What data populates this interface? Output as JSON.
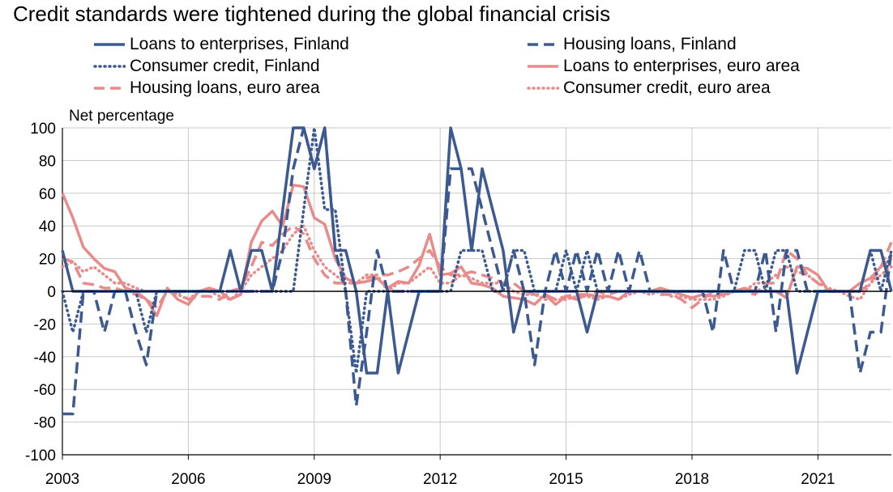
{
  "chart_data": {
    "type": "line",
    "title": "Credit standards were tightened during the global financial crisis",
    "ylabel": "Net percentage",
    "xlabel": "",
    "ylim": [
      -100,
      100
    ],
    "xlim": [
      2003.0,
      2022.75
    ],
    "yticks": [
      "100",
      "80",
      "60",
      "40",
      "20",
      "0",
      "-20",
      "-40",
      "-60",
      "-80",
      "-100"
    ],
    "xticks": [
      "2003",
      "2006",
      "2009",
      "2012",
      "2015",
      "2018",
      "2021"
    ],
    "grid": true,
    "legend_position": "top",
    "series": [
      {
        "name": "Loans to enterprises, Finland",
        "color": "#3c5a8f",
        "style": "solid",
        "x": [
          2003.0,
          2003.25,
          2003.5,
          2003.75,
          2004.0,
          2004.25,
          2004.5,
          2004.75,
          2005.0,
          2005.25,
          2005.5,
          2005.75,
          2006.0,
          2006.25,
          2006.5,
          2006.75,
          2007.0,
          2007.25,
          2007.5,
          2007.75,
          2008.0,
          2008.25,
          2008.5,
          2008.75,
          2009.0,
          2009.25,
          2009.5,
          2009.75,
          2010.0,
          2010.25,
          2010.5,
          2010.75,
          2011.0,
          2011.25,
          2011.5,
          2011.75,
          2012.0,
          2012.25,
          2012.5,
          2012.75,
          2013.0,
          2013.25,
          2013.5,
          2013.75,
          2014.0,
          2014.25,
          2014.5,
          2014.75,
          2015.0,
          2015.25,
          2015.5,
          2015.75,
          2016.0,
          2016.25,
          2016.5,
          2016.75,
          2017.0,
          2017.25,
          2017.5,
          2017.75,
          2018.0,
          2018.25,
          2018.5,
          2018.75,
          2019.0,
          2019.25,
          2019.5,
          2019.75,
          2020.0,
          2020.25,
          2020.5,
          2020.75,
          2021.0,
          2021.25,
          2021.5,
          2021.75,
          2022.0,
          2022.25,
          2022.5,
          2022.75
        ],
        "values": [
          25,
          0,
          0,
          0,
          0,
          0,
          0,
          0,
          0,
          0,
          0,
          0,
          0,
          0,
          0,
          0,
          25,
          0,
          25,
          25,
          0,
          50,
          100,
          100,
          75,
          100,
          25,
          25,
          0,
          -50,
          -50,
          0,
          -50,
          -25,
          0,
          0,
          0,
          100,
          75,
          25,
          75,
          50,
          25,
          -25,
          0,
          0,
          0,
          0,
          0,
          0,
          -25,
          0,
          0,
          0,
          0,
          0,
          0,
          0,
          0,
          0,
          0,
          0,
          0,
          0,
          0,
          0,
          0,
          0,
          0,
          0,
          -50,
          -25,
          0,
          0,
          0,
          0,
          0,
          25,
          25,
          0
        ]
      },
      {
        "name": "Housing loans, Finland",
        "color": "#3c5a8f",
        "style": "dashed",
        "x": [
          2003.0,
          2003.25,
          2003.5,
          2003.75,
          2004.0,
          2004.25,
          2004.5,
          2004.75,
          2005.0,
          2005.25,
          2005.5,
          2005.75,
          2006.0,
          2006.25,
          2006.5,
          2006.75,
          2007.0,
          2007.25,
          2007.5,
          2007.75,
          2008.0,
          2008.25,
          2008.5,
          2008.75,
          2009.0,
          2009.25,
          2009.5,
          2009.75,
          2010.0,
          2010.25,
          2010.5,
          2010.75,
          2011.0,
          2011.25,
          2011.5,
          2011.75,
          2012.0,
          2012.25,
          2012.5,
          2012.75,
          2013.0,
          2013.25,
          2013.5,
          2013.75,
          2014.0,
          2014.25,
          2014.5,
          2014.75,
          2015.0,
          2015.25,
          2015.5,
          2015.75,
          2016.0,
          2016.25,
          2016.5,
          2016.75,
          2017.0,
          2017.25,
          2017.5,
          2017.75,
          2018.0,
          2018.25,
          2018.5,
          2018.75,
          2019.0,
          2019.25,
          2019.5,
          2019.75,
          2020.0,
          2020.25,
          2020.5,
          2020.75,
          2021.0,
          2021.25,
          2021.5,
          2021.75,
          2022.0,
          2022.25,
          2022.5,
          2022.75
        ],
        "values": [
          -75,
          -75,
          0,
          0,
          -25,
          0,
          0,
          -25,
          -45,
          0,
          0,
          0,
          0,
          0,
          0,
          0,
          0,
          0,
          0,
          0,
          0,
          25,
          75,
          100,
          75,
          100,
          25,
          0,
          -70,
          -25,
          25,
          0,
          0,
          0,
          0,
          0,
          0,
          75,
          75,
          75,
          50,
          25,
          0,
          25,
          0,
          -45,
          0,
          25,
          0,
          25,
          0,
          25,
          0,
          25,
          0,
          25,
          0,
          0,
          0,
          0,
          0,
          0,
          -25,
          25,
          0,
          0,
          0,
          25,
          -25,
          25,
          25,
          0,
          0,
          0,
          0,
          0,
          -50,
          -25,
          -25,
          25
        ]
      },
      {
        "name": "Consumer credit, Finland",
        "color": "#3c5a8f",
        "style": "dotted",
        "x": [
          2003.0,
          2003.25,
          2003.5,
          2003.75,
          2004.0,
          2004.25,
          2004.5,
          2004.75,
          2005.0,
          2005.25,
          2005.5,
          2005.75,
          2006.0,
          2006.25,
          2006.5,
          2006.75,
          2007.0,
          2007.25,
          2007.5,
          2007.75,
          2008.0,
          2008.25,
          2008.5,
          2008.75,
          2009.0,
          2009.25,
          2009.5,
          2009.75,
          2010.0,
          2010.25,
          2010.5,
          2010.75,
          2011.0,
          2011.25,
          2011.5,
          2011.75,
          2012.0,
          2012.25,
          2012.5,
          2012.75,
          2013.0,
          2013.25,
          2013.5,
          2013.75,
          2014.0,
          2014.25,
          2014.5,
          2014.75,
          2015.0,
          2015.25,
          2015.5,
          2015.75,
          2016.0,
          2016.25,
          2016.5,
          2016.75,
          2017.0,
          2017.25,
          2017.5,
          2017.75,
          2018.0,
          2018.25,
          2018.5,
          2018.75,
          2019.0,
          2019.25,
          2019.5,
          2019.75,
          2020.0,
          2020.25,
          2020.5,
          2020.75,
          2021.0,
          2021.25,
          2021.5,
          2021.75,
          2022.0,
          2022.25,
          2022.5,
          2022.75
        ],
        "values": [
          0,
          -25,
          0,
          0,
          0,
          0,
          0,
          0,
          -25,
          0,
          0,
          0,
          0,
          0,
          0,
          0,
          0,
          0,
          0,
          0,
          0,
          0,
          0,
          50,
          100,
          50,
          50,
          0,
          -50,
          0,
          0,
          0,
          0,
          0,
          0,
          0,
          0,
          0,
          25,
          25,
          25,
          0,
          0,
          25,
          25,
          0,
          0,
          0,
          25,
          0,
          25,
          0,
          0,
          0,
          0,
          0,
          0,
          0,
          0,
          0,
          0,
          0,
          0,
          0,
          0,
          25,
          25,
          0,
          25,
          25,
          0,
          0,
          0,
          0,
          0,
          0,
          0,
          25,
          0,
          25
        ]
      },
      {
        "name": "Loans to enterprises, euro area",
        "color": "#e88b8b",
        "style": "solid",
        "x": [
          2003.0,
          2003.25,
          2003.5,
          2003.75,
          2004.0,
          2004.25,
          2004.5,
          2004.75,
          2005.0,
          2005.25,
          2005.5,
          2005.75,
          2006.0,
          2006.25,
          2006.5,
          2006.75,
          2007.0,
          2007.25,
          2007.5,
          2007.75,
          2008.0,
          2008.25,
          2008.5,
          2008.75,
          2009.0,
          2009.25,
          2009.5,
          2009.75,
          2010.0,
          2010.25,
          2010.5,
          2010.75,
          2011.0,
          2011.25,
          2011.5,
          2011.75,
          2012.0,
          2012.25,
          2012.5,
          2012.75,
          2013.0,
          2013.25,
          2013.5,
          2013.75,
          2014.0,
          2014.25,
          2014.5,
          2014.75,
          2015.0,
          2015.25,
          2015.5,
          2015.75,
          2016.0,
          2016.25,
          2016.5,
          2016.75,
          2017.0,
          2017.25,
          2017.5,
          2017.75,
          2018.0,
          2018.25,
          2018.5,
          2018.75,
          2019.0,
          2019.25,
          2019.5,
          2019.75,
          2020.0,
          2020.25,
          2020.5,
          2020.75,
          2021.0,
          2021.25,
          2021.5,
          2021.75,
          2022.0,
          2022.25,
          2022.5,
          2022.75
        ],
        "values": [
          60,
          45,
          27,
          20,
          14,
          12,
          2,
          0,
          -5,
          -15,
          2,
          -5,
          -8,
          0,
          2,
          0,
          -5,
          -2,
          30,
          43,
          49,
          40,
          65,
          64,
          45,
          41,
          20,
          8,
          5,
          6,
          8,
          2,
          6,
          5,
          16,
          35,
          10,
          11,
          15,
          5,
          4,
          2,
          -3,
          -4,
          -5,
          -8,
          -2,
          -8,
          -3,
          -5,
          -2,
          -3,
          -3,
          -5,
          0,
          0,
          0,
          2,
          0,
          -2,
          -4,
          -2,
          -3,
          -2,
          0,
          2,
          0,
          0,
          0,
          -4,
          15,
          14,
          10,
          0,
          0,
          0,
          5,
          8,
          15,
          20
        ]
      },
      {
        "name": "Housing loans, euro area",
        "color": "#e88b8b",
        "style": "dashed",
        "x": [
          2003.0,
          2003.25,
          2003.5,
          2003.75,
          2004.0,
          2004.25,
          2004.5,
          2004.75,
          2005.0,
          2005.25,
          2005.5,
          2005.75,
          2006.0,
          2006.25,
          2006.5,
          2006.75,
          2007.0,
          2007.25,
          2007.5,
          2007.75,
          2008.0,
          2008.25,
          2008.5,
          2008.75,
          2009.0,
          2009.25,
          2009.5,
          2009.75,
          2010.0,
          2010.25,
          2010.5,
          2010.75,
          2011.0,
          2011.25,
          2011.5,
          2011.75,
          2012.0,
          2012.25,
          2012.5,
          2012.75,
          2013.0,
          2013.25,
          2013.5,
          2013.75,
          2014.0,
          2014.25,
          2014.5,
          2014.75,
          2015.0,
          2015.25,
          2015.5,
          2015.75,
          2016.0,
          2016.25,
          2016.5,
          2016.75,
          2017.0,
          2017.25,
          2017.5,
          2017.75,
          2018.0,
          2018.25,
          2018.5,
          2018.75,
          2019.0,
          2019.25,
          2019.5,
          2019.75,
          2020.0,
          2020.25,
          2020.5,
          2020.75,
          2021.0,
          2021.25,
          2021.5,
          2021.75,
          2022.0,
          2022.25,
          2022.5,
          2022.75
        ],
        "values": [
          20,
          18,
          5,
          4,
          2,
          2,
          0,
          -2,
          -5,
          -10,
          0,
          0,
          -5,
          -3,
          -3,
          -5,
          0,
          2,
          15,
          30,
          28,
          35,
          40,
          35,
          20,
          10,
          5,
          5,
          5,
          8,
          10,
          10,
          12,
          15,
          20,
          25,
          15,
          10,
          10,
          12,
          10,
          8,
          5,
          5,
          0,
          -2,
          -2,
          -5,
          -3,
          -2,
          -2,
          0,
          -2,
          0,
          0,
          0,
          0,
          -2,
          -2,
          -5,
          -10,
          -5,
          0,
          -2,
          0,
          0,
          -2,
          5,
          5,
          25,
          20,
          10,
          5,
          0,
          0,
          0,
          0,
          5,
          15,
          30
        ]
      },
      {
        "name": "Consumer credit, euro area",
        "color": "#e88b8b",
        "style": "dotted",
        "x": [
          2003.0,
          2003.25,
          2003.5,
          2003.75,
          2004.0,
          2004.25,
          2004.5,
          2004.75,
          2005.0,
          2005.25,
          2005.5,
          2005.75,
          2006.0,
          2006.25,
          2006.5,
          2006.75,
          2007.0,
          2007.25,
          2007.5,
          2007.75,
          2008.0,
          2008.25,
          2008.5,
          2008.75,
          2009.0,
          2009.25,
          2009.5,
          2009.75,
          2010.0,
          2010.25,
          2010.5,
          2010.75,
          2011.0,
          2011.25,
          2011.5,
          2011.75,
          2012.0,
          2012.25,
          2012.5,
          2012.75,
          2013.0,
          2013.25,
          2013.5,
          2013.75,
          2014.0,
          2014.25,
          2014.5,
          2014.75,
          2015.0,
          2015.25,
          2015.5,
          2015.75,
          2016.0,
          2016.25,
          2016.5,
          2016.75,
          2017.0,
          2017.25,
          2017.5,
          2017.75,
          2018.0,
          2018.25,
          2018.5,
          2018.75,
          2019.0,
          2019.25,
          2019.5,
          2019.75,
          2020.0,
          2020.25,
          2020.5,
          2020.75,
          2021.0,
          2021.25,
          2021.5,
          2021.75,
          2022.0,
          2022.25,
          2022.5,
          2022.75
        ],
        "values": [
          15,
          18,
          12,
          15,
          10,
          5,
          5,
          2,
          0,
          0,
          0,
          -2,
          -5,
          0,
          0,
          -3,
          -5,
          0,
          10,
          15,
          20,
          25,
          35,
          40,
          25,
          15,
          10,
          5,
          5,
          10,
          10,
          0,
          5,
          5,
          10,
          15,
          5,
          5,
          10,
          8,
          5,
          5,
          5,
          0,
          -2,
          -2,
          -5,
          -5,
          -5,
          -3,
          -3,
          -5,
          -3,
          -5,
          -2,
          0,
          -2,
          0,
          -3,
          -3,
          -5,
          -5,
          -5,
          -3,
          0,
          0,
          5,
          5,
          10,
          15,
          12,
          10,
          5,
          2,
          0,
          -3,
          -5,
          5,
          10,
          15
        ]
      }
    ]
  }
}
